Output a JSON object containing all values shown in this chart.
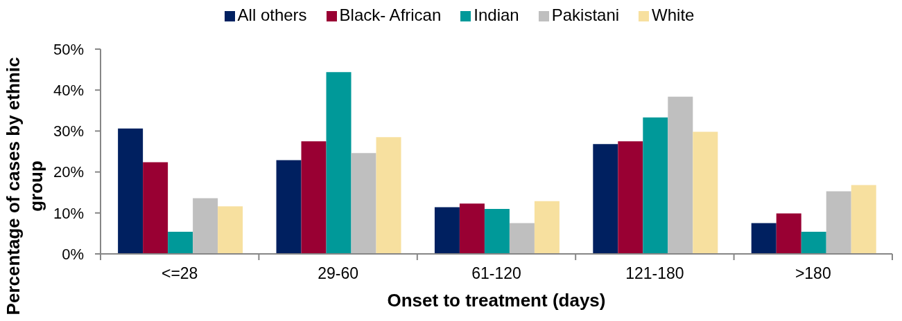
{
  "chart_data": {
    "type": "bar",
    "xlabel": "Onset to treatment (days)",
    "ylabel": "Percentage of cases by ethnic group",
    "categories": [
      "<=28",
      "29-60",
      "61-120",
      "121-180",
      ">180"
    ],
    "series": [
      {
        "name": "All others",
        "color": "#002060",
        "values": [
          30.6,
          22.9,
          11.4,
          26.8,
          7.5
        ]
      },
      {
        "name": "Black- African",
        "color": "#990033",
        "values": [
          22.4,
          27.5,
          12.3,
          27.5,
          9.9
        ]
      },
      {
        "name": "Indian",
        "color": "#009999",
        "values": [
          5.4,
          44.4,
          11.0,
          33.3,
          5.4
        ]
      },
      {
        "name": "Pakistani",
        "color": "#bfbfbf",
        "values": [
          13.6,
          24.6,
          7.5,
          38.4,
          15.3
        ]
      },
      {
        "name": "White",
        "color": "#f7e09f",
        "values": [
          11.6,
          28.5,
          12.9,
          29.8,
          16.8
        ]
      }
    ],
    "ylim": [
      0,
      50
    ],
    "yticks": [
      {
        "value": 0,
        "label": "0%"
      },
      {
        "value": 10,
        "label": "10%"
      },
      {
        "value": 20,
        "label": "20%"
      },
      {
        "value": 30,
        "label": "30%"
      },
      {
        "value": 40,
        "label": "40%"
      },
      {
        "value": 50,
        "label": "50%"
      }
    ],
    "legend": "top"
  }
}
